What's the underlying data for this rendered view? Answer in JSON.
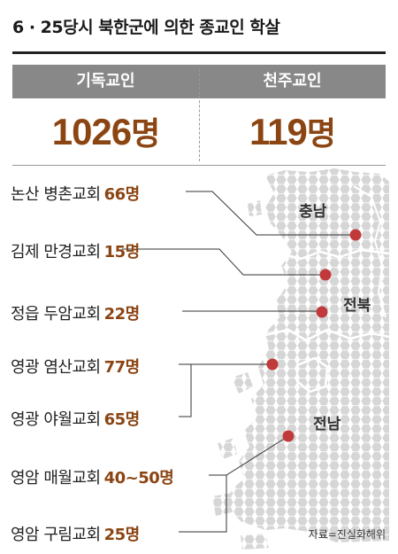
{
  "title": "6 · 25당시 북한군에 의한 종교인 학살",
  "left": {
    "label": "기독교인",
    "count": "1026",
    "unit": "명"
  },
  "right": {
    "label": "천주교인",
    "count": "119",
    "unit": "명"
  },
  "churches": [
    {
      "name": "논산 병촌교회",
      "count": "66명"
    },
    {
      "name": "김제 만경교회",
      "count": "15명"
    },
    {
      "name": "정읍 두암교회",
      "count": "22명"
    },
    {
      "name": "영광 염산교회",
      "count": "77명"
    },
    {
      "name": "영광 야월교회",
      "count": "65명"
    },
    {
      "name": "영암 매월교회",
      "count": "40~50명"
    },
    {
      "name": "영암 구림교회",
      "count": "25명"
    }
  ],
  "regions": {
    "chungnam": "충남",
    "jeonbuk": "전북",
    "jeonnam": "전남"
  },
  "source": "자료=진실화해위",
  "colors": {
    "accent": "#8b4513",
    "band": "#888888",
    "map": "#d9d9d9",
    "marker": "#c0393b"
  }
}
